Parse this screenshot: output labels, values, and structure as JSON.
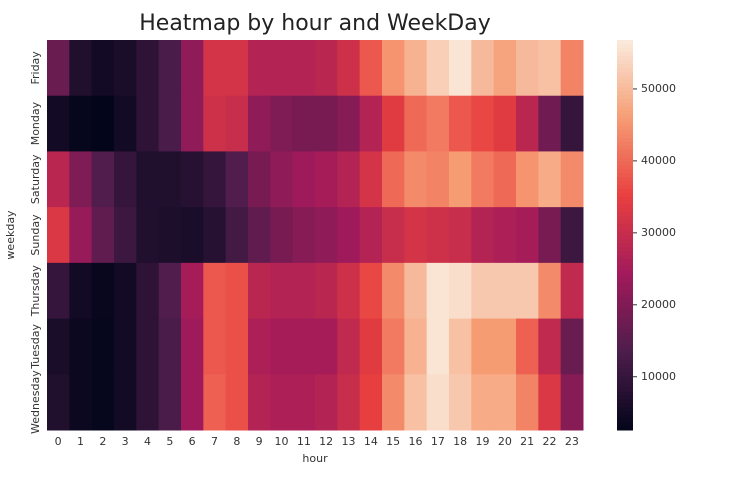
{
  "chart_data": {
    "type": "heatmap",
    "title": "Heatmap by hour and WeekDay",
    "xlabel": "hour",
    "ylabel": "weekday",
    "x": [
      0,
      1,
      2,
      3,
      4,
      5,
      6,
      7,
      8,
      9,
      10,
      11,
      12,
      13,
      14,
      15,
      16,
      17,
      18,
      19,
      20,
      21,
      22,
      23
    ],
    "y": [
      "Friday",
      "Monday",
      "Saturday",
      "Sunday",
      "Thursday",
      "Tuesday",
      "Wednesday"
    ],
    "values": [
      [
        17000,
        7000,
        5000,
        6000,
        9000,
        13000,
        22000,
        32000,
        32000,
        27000,
        27000,
        27000,
        28000,
        31000,
        38000,
        45000,
        49000,
        53000,
        56000,
        50000,
        47000,
        50000,
        51000,
        43000
      ],
      [
        5000,
        3000,
        2600,
        5000,
        9000,
        13000,
        22000,
        31000,
        30000,
        22000,
        20000,
        19000,
        19000,
        21000,
        27000,
        34000,
        40000,
        42000,
        38000,
        36000,
        34000,
        28000,
        18000,
        10000
      ],
      [
        28000,
        20000,
        14000,
        10000,
        7000,
        7000,
        8000,
        10000,
        14000,
        19000,
        22000,
        24000,
        25000,
        27000,
        32000,
        40000,
        44000,
        43000,
        46000,
        42000,
        40000,
        45000,
        48000,
        44000
      ],
      [
        33000,
        23000,
        16000,
        11000,
        7000,
        6500,
        6000,
        8000,
        12000,
        16000,
        19000,
        21000,
        22000,
        24000,
        27000,
        30000,
        32000,
        31000,
        30000,
        27000,
        26000,
        25000,
        19000,
        11000
      ],
      [
        10000,
        5000,
        3500,
        5000,
        9000,
        14000,
        25000,
        38000,
        37000,
        28000,
        27000,
        27000,
        28000,
        31000,
        36000,
        44000,
        50000,
        56000,
        55000,
        52000,
        52000,
        52000,
        44000,
        29000
      ],
      [
        6000,
        4000,
        3000,
        5000,
        9000,
        13000,
        24000,
        38000,
        37000,
        26000,
        25000,
        25000,
        25000,
        29000,
        34000,
        42000,
        49000,
        56000,
        51000,
        46000,
        46000,
        39000,
        29000,
        17000
      ],
      [
        7000,
        4000,
        3000,
        5000,
        9000,
        13000,
        24000,
        39000,
        37000,
        27000,
        26000,
        26000,
        27000,
        30000,
        35000,
        44000,
        51000,
        55000,
        52000,
        48000,
        48000,
        43000,
        33000,
        21000
      ]
    ],
    "colormap": "rocket",
    "clim": [
      2600,
      56800
    ],
    "cticks": [
      10000,
      20000,
      30000,
      40000,
      50000
    ]
  }
}
